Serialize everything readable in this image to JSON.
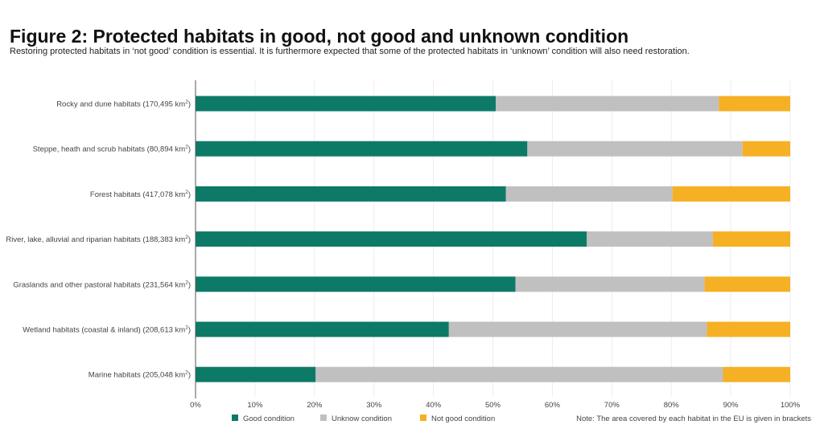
{
  "header": {
    "title": "Figure 2: Protected habitats in good, not good and unknown condition",
    "subtitle": "Restoring protected habitats in ‘not good’ condition is essential. It is furthermore expected that some of the protected habitats in ‘unknown’ condition will also need restoration."
  },
  "chart_data": {
    "type": "bar",
    "orientation": "horizontal",
    "stacked": true,
    "title": "Figure 2: Protected habitats in good, not good and unknown condition",
    "xlabel": "",
    "ylabel": "",
    "xlim": [
      0,
      100
    ],
    "x_ticks": [
      "0%",
      "10%",
      "20%",
      "30%",
      "40%",
      "50%",
      "60%",
      "70%",
      "80%",
      "90%",
      "100%"
    ],
    "grid": true,
    "legend_position": "bottom",
    "categories": [
      {
        "name": "Rocky and dune habitats (170,495 km",
        "sup": "2",
        "close": ")"
      },
      {
        "name": "Steppe, heath and scrub habitats (80,894 km",
        "sup": "2",
        "close": ")"
      },
      {
        "name": "Forest habitats (417,078 km",
        "sup": "2",
        "close": ")"
      },
      {
        "name": "River, lake, alluvial and riparian habitats (188,383 km",
        "sup": "2",
        "close": ")"
      },
      {
        "name": "Graslands and other pastoral habitats (231,564 km",
        "sup": "2",
        "close": ")"
      },
      {
        "name": "Wetland habitats (coastal & inland) (208,613 km",
        "sup": "2",
        "close": ")"
      },
      {
        "name": "Marine habitats (205,048 km",
        "sup": "2",
        "close": ")"
      }
    ],
    "series": [
      {
        "name": "Good condition",
        "color": "#0d7a68",
        "values": [
          50.5,
          55.8,
          52.2,
          65.8,
          53.8,
          42.6,
          20.2
        ]
      },
      {
        "name": "Unknow condition",
        "color": "#c0c0c0",
        "values": [
          37.5,
          36.2,
          28.0,
          21.2,
          31.8,
          43.4,
          68.5
        ]
      },
      {
        "name": "Not good condition",
        "color": "#f6b024",
        "values": [
          12.0,
          8.0,
          19.8,
          13.0,
          14.4,
          14.0,
          11.3
        ]
      }
    ],
    "note": "Note: The area covered by each habitat in the EU is given in brackets"
  }
}
